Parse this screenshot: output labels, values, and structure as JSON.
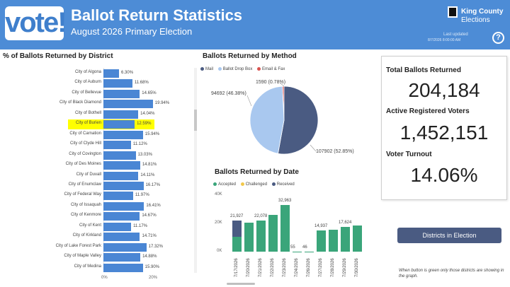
{
  "header": {
    "logo_text": "vote!",
    "title": "Ballot Return Statistics",
    "subtitle": "August 2026 Primary Election",
    "org_name": "King County",
    "org_sub": "Elections",
    "updated_label": "Last updated",
    "updated_time": "8/7/2026 8:00:00 AM",
    "help_label": "?"
  },
  "district_chart": {
    "title": "% of Ballots Returned by District",
    "highlight_color": "#ffff00",
    "bar_color": "#4a86d4",
    "axis_ticks": [
      "0%",
      "20%"
    ],
    "axis_max": 20,
    "rows": [
      {
        "name": "City of Algona",
        "value": 6.3,
        "label": "6.30%"
      },
      {
        "name": "City of Auburn",
        "value": 11.68,
        "label": "11.68%"
      },
      {
        "name": "City of Bellevue",
        "value": 14.65,
        "label": "14.65%"
      },
      {
        "name": "City of Black Diamond",
        "value": 19.94,
        "label": "19.94%"
      },
      {
        "name": "City of Bothell",
        "value": 14.04,
        "label": "14.04%"
      },
      {
        "name": "City of Burien",
        "value": 12.59,
        "label": "12.59%",
        "highlighted": true
      },
      {
        "name": "City of Carnation",
        "value": 15.94,
        "label": "15.94%"
      },
      {
        "name": "City of Clyde Hill",
        "value": 11.12,
        "label": "11.12%"
      },
      {
        "name": "City of Covington",
        "value": 13.03,
        "label": "13.03%"
      },
      {
        "name": "City of Des Moines",
        "value": 14.81,
        "label": "14.81%"
      },
      {
        "name": "City of Duvall",
        "value": 14.11,
        "label": "14.11%"
      },
      {
        "name": "City of Enumclaw",
        "value": 16.17,
        "label": "16.17%"
      },
      {
        "name": "City of Federal Way",
        "value": 11.97,
        "label": "11.97%"
      },
      {
        "name": "City of Issaquah",
        "value": 16.41,
        "label": "16.41%"
      },
      {
        "name": "City of Kenmore",
        "value": 14.67,
        "label": "14.67%"
      },
      {
        "name": "City of Kent",
        "value": 11.17,
        "label": "11.17%"
      },
      {
        "name": "City of Kirkland",
        "value": 14.71,
        "label": "14.71%"
      },
      {
        "name": "City of Lake Forest Park",
        "value": 17.32,
        "label": "17.32%"
      },
      {
        "name": "City of Maple Valley",
        "value": 14.88,
        "label": "14.88%"
      },
      {
        "name": "City of Medina",
        "value": 15.9,
        "label": "15.90%"
      }
    ]
  },
  "method_chart": {
    "title": "Ballots Returned by Method",
    "legend": [
      {
        "name": "Mail",
        "color": "#4a5b82"
      },
      {
        "name": "Ballot Drop Box",
        "color": "#a9c8ef"
      },
      {
        "name": "Email & Fax",
        "color": "#d9534f"
      }
    ],
    "slices": [
      {
        "name": "Mail",
        "value": 107902,
        "label": "107902 (52.85%)",
        "color": "#4a5b82"
      },
      {
        "name": "Ballot Drop Box",
        "value": 94692,
        "label": "94692 (46.38%)",
        "color": "#a9c8ef"
      },
      {
        "name": "Email & Fax",
        "value": 1590,
        "label": "1590 (0.78%)",
        "color": "#d9534f"
      }
    ]
  },
  "date_chart": {
    "title": "Ballots Returned by Date",
    "legend": [
      {
        "name": "Accepted",
        "color": "#3aa57a"
      },
      {
        "name": "Challenged",
        "color": "#f2c84b"
      },
      {
        "name": "Received",
        "color": "#4a5b82"
      }
    ],
    "y_ticks": [
      "40K",
      "20K",
      "0K"
    ],
    "y_max": 40000,
    "bars": [
      {
        "date": "7/17/2026",
        "accepted": 10500,
        "received": 11427,
        "label": "21,927"
      },
      {
        "date": "7/20/2026",
        "accepted": 20500,
        "received": 0,
        "label": ""
      },
      {
        "date": "7/21/2026",
        "accepted": 22078,
        "received": 0,
        "label": "22,078"
      },
      {
        "date": "7/22/2026",
        "accepted": 26000,
        "received": 0,
        "label": ""
      },
      {
        "date": "7/23/2026",
        "accepted": 32963,
        "received": 0,
        "label": "32,963"
      },
      {
        "date": "7/24/2026",
        "accepted": 55,
        "received": 0,
        "label": "55"
      },
      {
        "date": "7/26/2026",
        "accepted": 46,
        "received": 0,
        "label": "46"
      },
      {
        "date": "7/27/2026",
        "accepted": 14937,
        "received": 0,
        "label": "14,937"
      },
      {
        "date": "7/28/2026",
        "accepted": 15500,
        "received": 0,
        "label": ""
      },
      {
        "date": "7/29/2026",
        "accepted": 17624,
        "received": 0,
        "label": "17,624"
      },
      {
        "date": "7/30/2026",
        "accepted": 18500,
        "received": 0,
        "label": ""
      }
    ]
  },
  "stats": {
    "total_label": "Total Ballots Returned",
    "total_value": "204,184",
    "voters_label": "Active Registered Voters",
    "voters_value": "1,452,151",
    "turnout_label": "Voter Turnout",
    "turnout_value": "14.06%"
  },
  "districts_button": "Districts in Election",
  "note": "When button is green only those districts are showing in the graph."
}
